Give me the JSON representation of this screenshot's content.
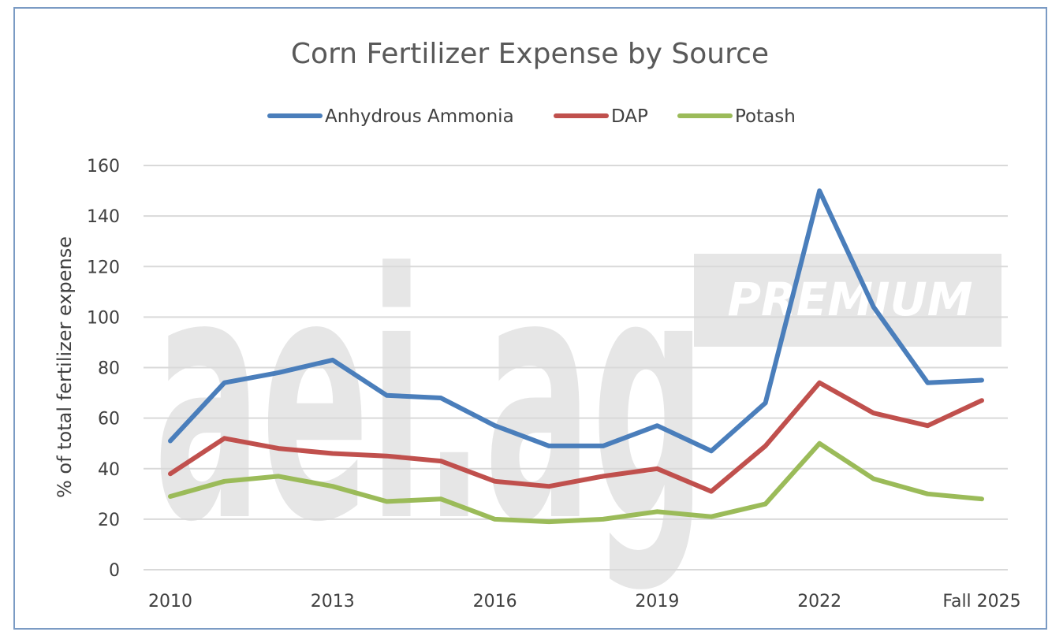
{
  "chart_data": {
    "type": "line",
    "title": "Corn Fertilizer Expense by Source",
    "ylabel": "% of total fertilizer expense",
    "xlabel": "",
    "ylim": [
      0,
      160
    ],
    "yticks": [
      0,
      20,
      40,
      60,
      80,
      100,
      120,
      140,
      160
    ],
    "grid": true,
    "legend_position": "top",
    "x": [
      "2010",
      "2011",
      "2012",
      "2013",
      "2014",
      "2015",
      "2016",
      "2017",
      "2018",
      "2019",
      "2020",
      "2021",
      "2022",
      "2023",
      "2024",
      "Fall 2025"
    ],
    "x_tick_labels": [
      "2010",
      "2013",
      "2016",
      "2019",
      "2022",
      "Fall 2025"
    ],
    "series": [
      {
        "name": "Anhydrous Ammonia",
        "color": "#4a7ebb",
        "values": [
          51,
          74,
          78,
          83,
          69,
          68,
          57,
          49,
          49,
          57,
          47,
          66,
          150,
          104,
          74,
          75
        ]
      },
      {
        "name": "DAP",
        "color": "#c0504d",
        "values": [
          38,
          52,
          48,
          46,
          45,
          43,
          35,
          33,
          37,
          40,
          31,
          49,
          74,
          62,
          57,
          67
        ]
      },
      {
        "name": "Potash",
        "color": "#9bbb59",
        "values": [
          29,
          35,
          37,
          33,
          27,
          28,
          20,
          19,
          20,
          23,
          21,
          26,
          50,
          36,
          30,
          28
        ]
      }
    ]
  },
  "watermark": {
    "logo_text": "aei.ag",
    "badge_text": "PREMIUM",
    "color": "#e6e6e6"
  }
}
